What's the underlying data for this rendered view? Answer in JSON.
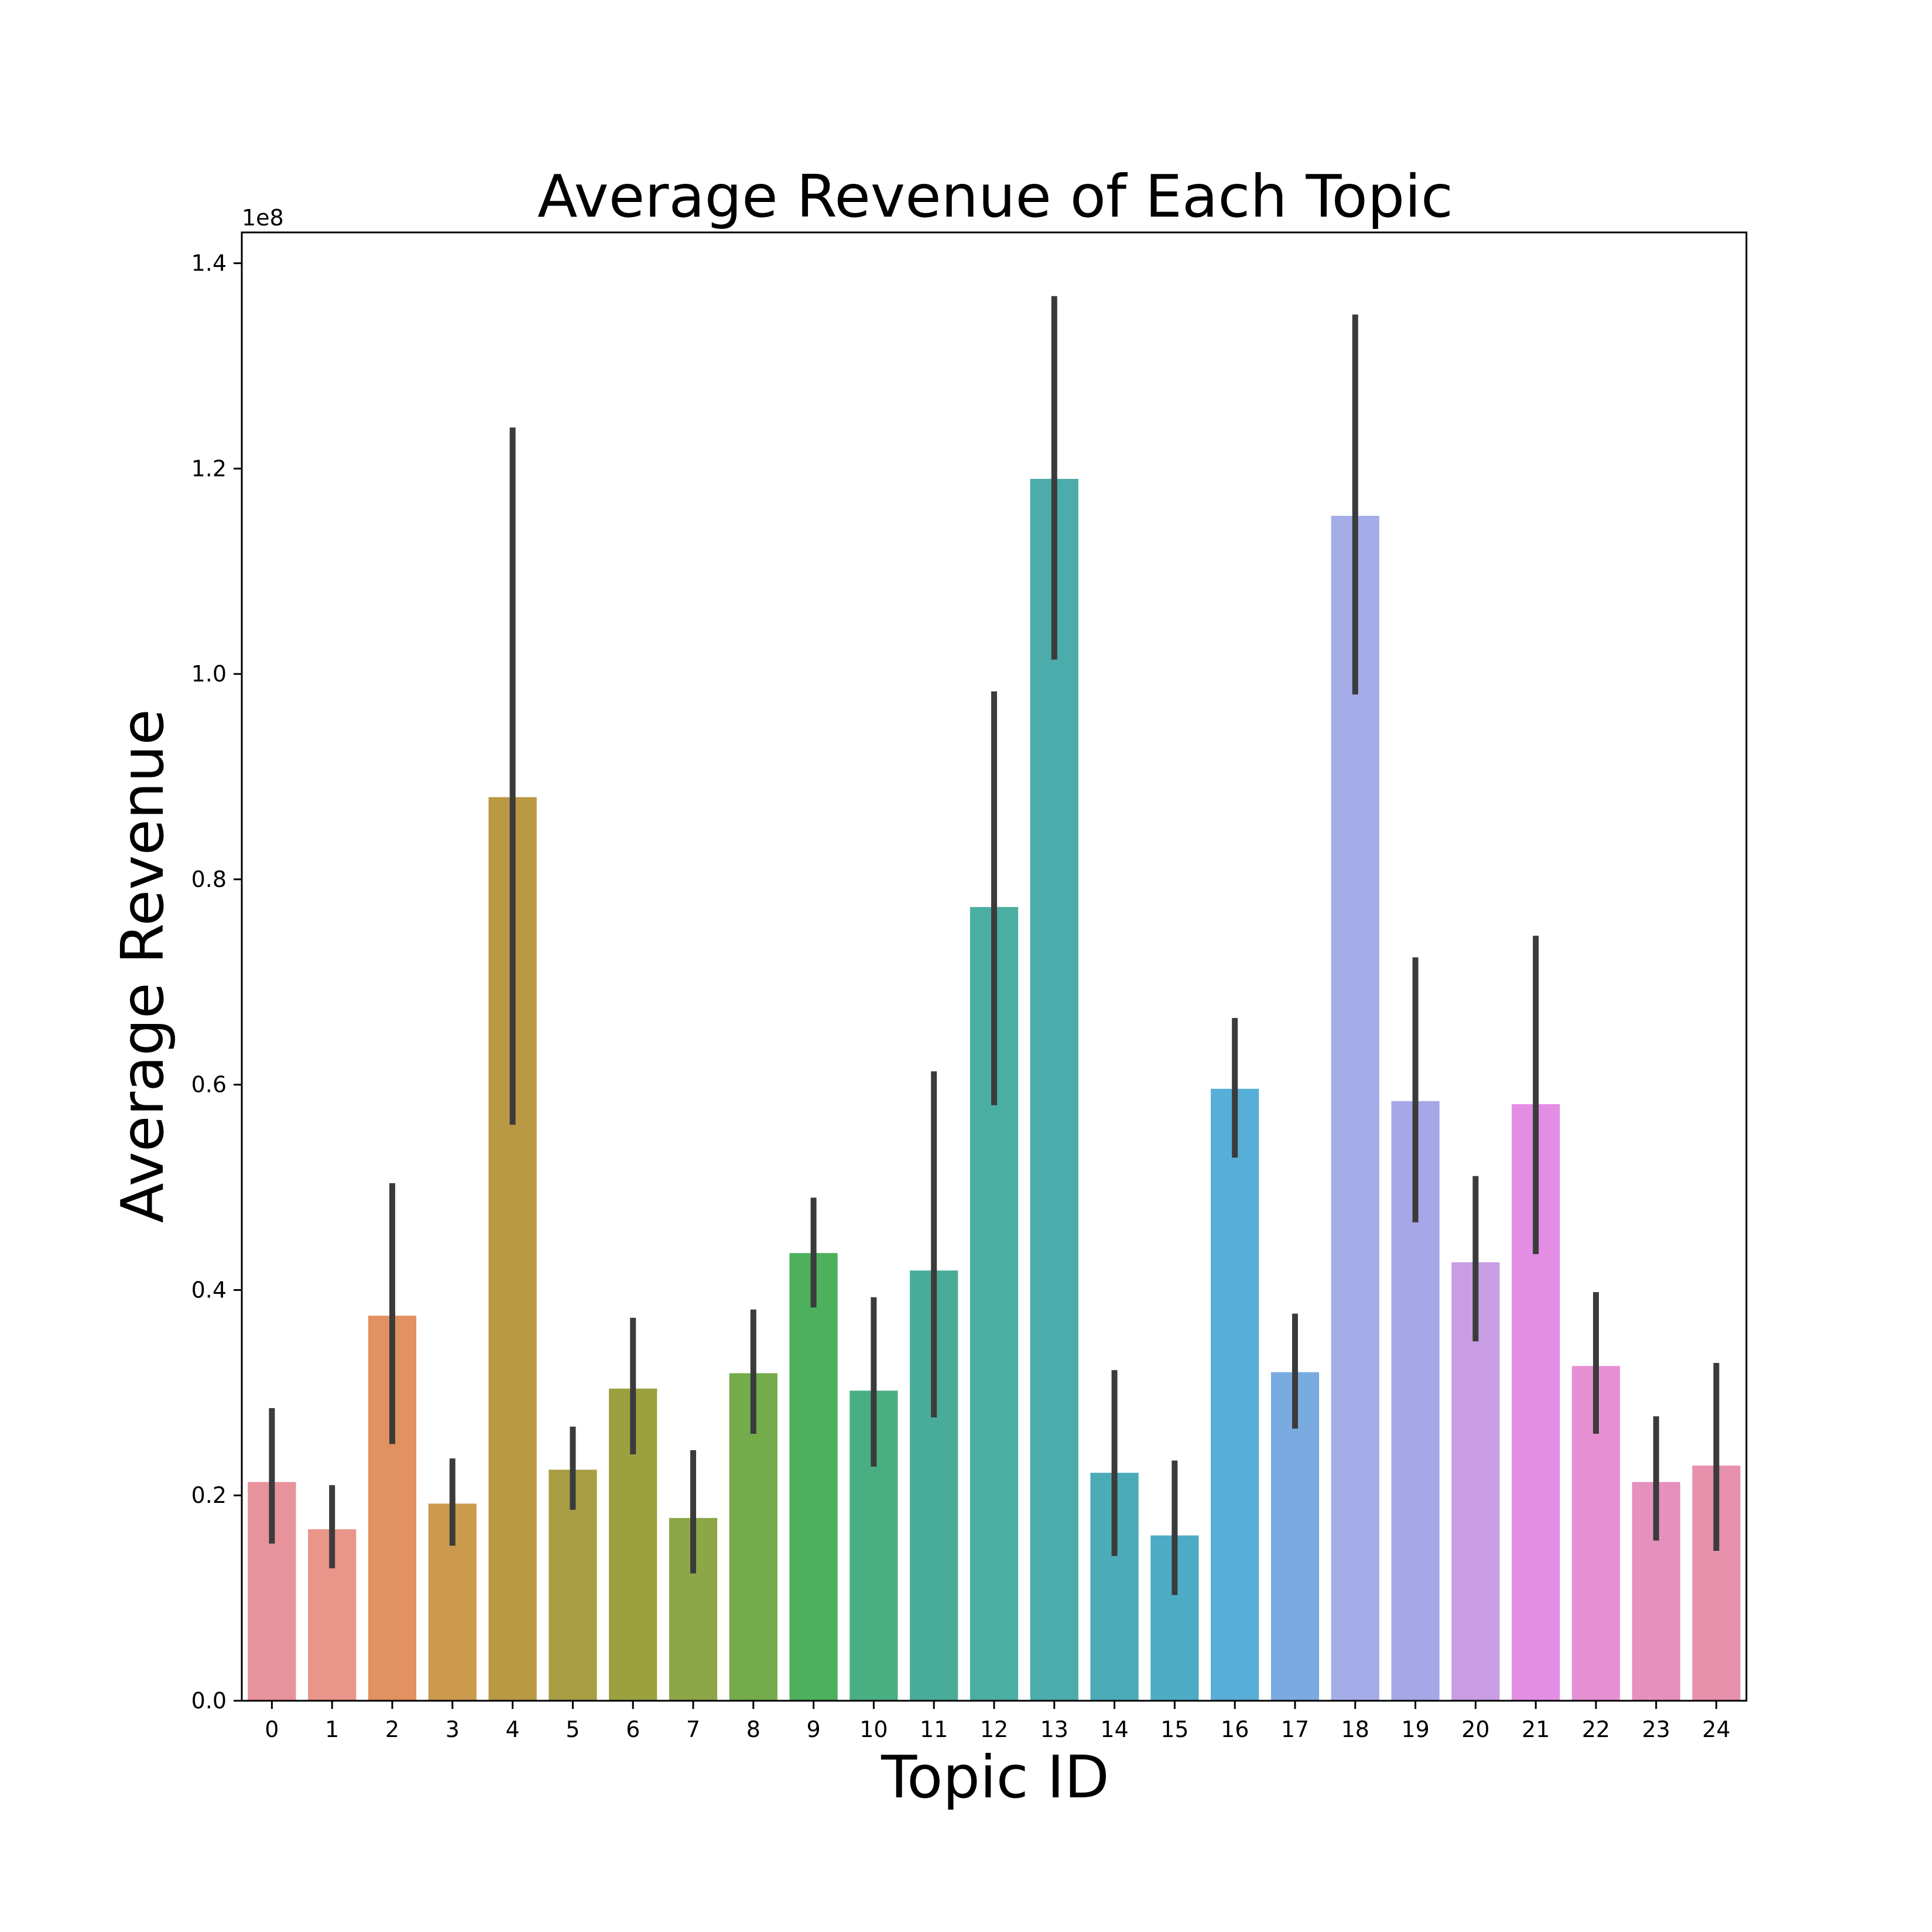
{
  "chart_data": {
    "type": "bar",
    "title": "Average Revenue of Each Topic",
    "xlabel": "Topic ID",
    "ylabel": "Average Revenue",
    "y_offset_label": "1e8",
    "y_scale": 100000000,
    "ylim": [
      0,
      1.43
    ],
    "yticks": [
      0.0,
      0.2,
      0.4,
      0.6,
      0.8,
      1.0,
      1.2,
      1.4
    ],
    "ytick_labels": [
      "0.0",
      "0.2",
      "0.4",
      "0.6",
      "0.8",
      "1.0",
      "1.2",
      "1.4"
    ],
    "grid": false,
    "legend": "none",
    "categories": [
      "0",
      "1",
      "2",
      "3",
      "4",
      "5",
      "6",
      "7",
      "8",
      "9",
      "10",
      "11",
      "12",
      "13",
      "14",
      "15",
      "16",
      "17",
      "18",
      "19",
      "20",
      "21",
      "22",
      "23",
      "24"
    ],
    "values": [
      0.213,
      0.167,
      0.375,
      0.192,
      0.88,
      0.225,
      0.304,
      0.178,
      0.319,
      0.436,
      0.302,
      0.419,
      0.773,
      1.19,
      0.222,
      0.161,
      0.596,
      0.32,
      1.154,
      0.584,
      0.427,
      0.581,
      0.326,
      0.213,
      0.229
    ],
    "error_low": [
      0.153,
      0.129,
      0.25,
      0.151,
      0.561,
      0.186,
      0.24,
      0.124,
      0.26,
      0.383,
      0.228,
      0.276,
      0.58,
      1.014,
      0.141,
      0.103,
      0.529,
      0.265,
      0.98,
      0.466,
      0.35,
      0.435,
      0.26,
      0.156,
      0.146
    ],
    "error_high": [
      0.285,
      0.21,
      0.504,
      0.236,
      1.24,
      0.267,
      0.373,
      0.244,
      0.381,
      0.49,
      0.393,
      0.613,
      0.983,
      1.368,
      0.322,
      0.234,
      0.665,
      0.377,
      1.35,
      0.724,
      0.511,
      0.745,
      0.398,
      0.277,
      0.329
    ],
    "colors": [
      "#e8939b",
      "#e9958a",
      "#e29160",
      "#cc9a4d",
      "#ba9944",
      "#a89d43",
      "#9ca13f",
      "#8ca648",
      "#74ab4b",
      "#4cb05d",
      "#4aae83",
      "#49ac98",
      "#4aaea2",
      "#4bacab",
      "#4babb7",
      "#4eabc5",
      "#57aed7",
      "#7aabe0",
      "#a5ade9",
      "#a6a7e7",
      "#c99de4",
      "#e38de5",
      "#e690d3",
      "#e690bd",
      "#e690ac"
    ],
    "error_color": "#3b3b3b"
  }
}
